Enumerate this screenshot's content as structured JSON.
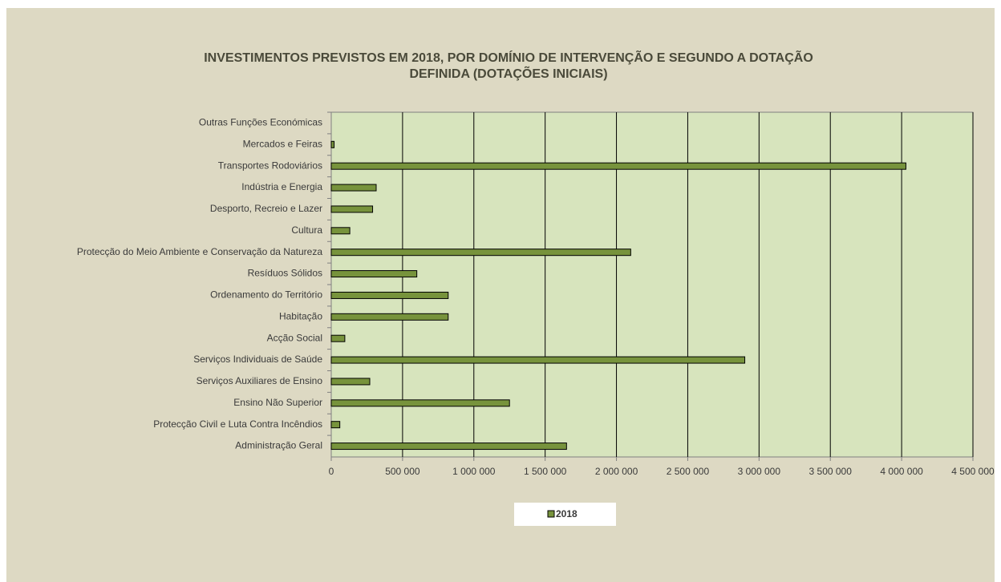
{
  "chart_data": {
    "type": "barh",
    "title": [
      "INVESTIMENTOS  PREVISTOS EM 2018, POR DOMÍNIO  DE INTERVENÇÃO  E SEGUNDO  A DOTAÇÃO",
      "DEFINIDA (DOTAÇÕES INICIAIS)"
    ],
    "categories": [
      "Outras Funções Económicas",
      "Mercados e Feiras",
      "Transportes Rodoviários",
      "Indústria e Energia",
      "Desporto, Recreio e Lazer",
      "Cultura",
      "Protecção do Meio Ambiente e Conservação da Natureza",
      "Resíduos Sólidos",
      "Ordenamento do Território",
      "Habitação",
      "Acção Social",
      "Serviços Individuais de Saúde",
      "Serviços Auxiliares de Ensino",
      "Ensino Não Superior",
      "Protecção Civil e Luta Contra Incêndios",
      "Administração Geral"
    ],
    "series": [
      {
        "name": "2018",
        "color": "#77933c",
        "values": [
          0,
          20000,
          4030000,
          315000,
          290000,
          130000,
          2100000,
          600000,
          820000,
          820000,
          95000,
          2900000,
          270000,
          1250000,
          60000,
          1650000
        ]
      }
    ],
    "xlim": [
      0,
      4500000
    ],
    "xticks": [
      0,
      {
        "value": 500000,
        "label": "500 000"
      },
      {
        "value": 1000000,
        "label": "1 000 000"
      },
      {
        "value": 1500000,
        "label": "1 500 000"
      },
      {
        "value": 2000000,
        "label": "2 000 000"
      },
      {
        "value": 2500000,
        "label": "2 500 000"
      },
      {
        "value": 3000000,
        "label": "3 000 000"
      },
      {
        "value": 3500000,
        "label": "3 500 000"
      },
      {
        "value": 4000000,
        "label": "4 000 000"
      },
      {
        "value": 4500000,
        "label": "4 500 000"
      }
    ],
    "grid": true,
    "legend": "bottom"
  }
}
